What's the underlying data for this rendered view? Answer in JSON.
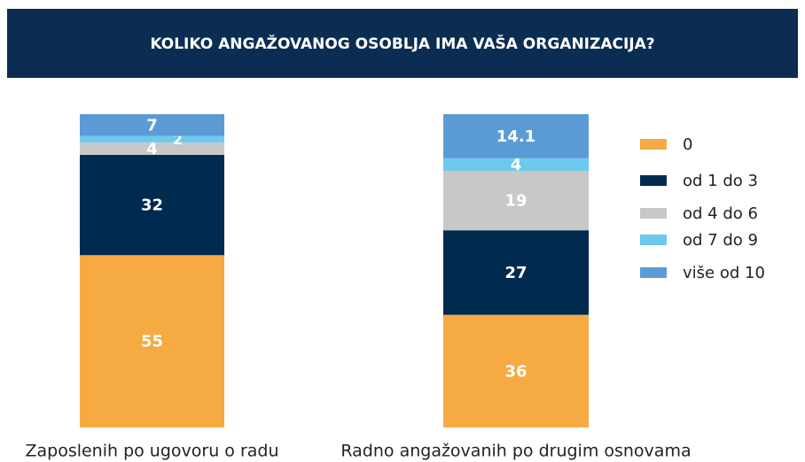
{
  "chart_data": {
    "type": "stacked_bar",
    "title": "KOLIKO ANGAŽOVANOG OSOBLJA IMA VAŠA ORGANIZACIJA?",
    "categories": [
      "Zaposlenih po ugovoru o radu",
      "Radno angažovanih po drugim osnovama"
    ],
    "series": [
      {
        "name": "0",
        "color": "#f5aa42",
        "values": [
          55,
          36
        ]
      },
      {
        "name": "od 1 do 3",
        "color": "#002a4f",
        "values": [
          32,
          27
        ]
      },
      {
        "name": "od 4 do 6",
        "color": "#c8c8c8",
        "values": [
          4,
          19
        ]
      },
      {
        "name": "od 7 do 9",
        "color": "#6cc8ec",
        "values": [
          2,
          4
        ]
      },
      {
        "name": "više od 10",
        "color": "#5b9bd5",
        "values": [
          7,
          14.1
        ]
      }
    ],
    "legend": "right"
  }
}
